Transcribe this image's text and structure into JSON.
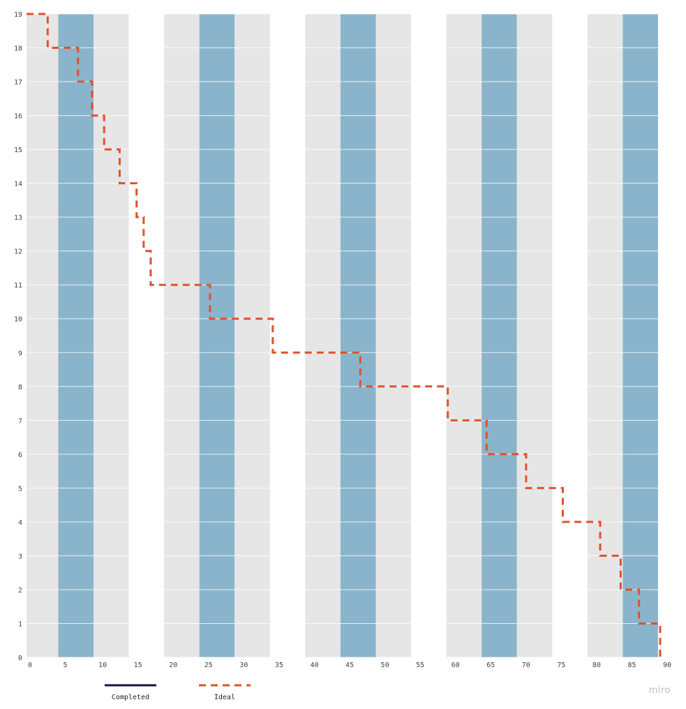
{
  "chart_data": {
    "type": "line",
    "title": "",
    "xlabel": "",
    "ylabel": "",
    "xlim": [
      0,
      90
    ],
    "ylim": [
      0,
      19
    ],
    "x_ticks": [
      0,
      5,
      10,
      15,
      20,
      25,
      30,
      35,
      40,
      45,
      50,
      55,
      60,
      65,
      70,
      75,
      80,
      85,
      90
    ],
    "y_ticks": [
      0,
      1,
      2,
      3,
      4,
      5,
      6,
      7,
      8,
      9,
      10,
      11,
      12,
      13,
      14,
      15,
      16,
      17,
      18,
      19
    ],
    "grid": "horizontal",
    "bands": [
      {
        "start": 0,
        "end": 4.5,
        "kind": "weekday"
      },
      {
        "start": 4.5,
        "end": 9.5,
        "kind": "highlight"
      },
      {
        "start": 9.5,
        "end": 14.5,
        "kind": "weekday"
      },
      {
        "start": 14.5,
        "end": 19.5,
        "kind": "empty"
      },
      {
        "start": 19.5,
        "end": 24.5,
        "kind": "weekday"
      },
      {
        "start": 24.5,
        "end": 29.5,
        "kind": "highlight"
      },
      {
        "start": 29.5,
        "end": 34.5,
        "kind": "weekday"
      },
      {
        "start": 34.5,
        "end": 39.5,
        "kind": "empty"
      },
      {
        "start": 39.5,
        "end": 44.5,
        "kind": "weekday"
      },
      {
        "start": 44.5,
        "end": 49.5,
        "kind": "highlight"
      },
      {
        "start": 49.5,
        "end": 54.5,
        "kind": "weekday"
      },
      {
        "start": 54.5,
        "end": 59.5,
        "kind": "empty"
      },
      {
        "start": 59.5,
        "end": 64.5,
        "kind": "weekday"
      },
      {
        "start": 64.5,
        "end": 69.5,
        "kind": "highlight"
      },
      {
        "start": 69.5,
        "end": 74.5,
        "kind": "weekday"
      },
      {
        "start": 74.5,
        "end": 79.5,
        "kind": "empty"
      },
      {
        "start": 79.5,
        "end": 84.5,
        "kind": "weekday"
      },
      {
        "start": 84.5,
        "end": 89.5,
        "kind": "highlight"
      }
    ],
    "series": [
      {
        "name": "Completed",
        "color": "#14143c",
        "style": "solid",
        "points": []
      },
      {
        "name": "Ideal",
        "color": "#e0512b",
        "style": "dashed",
        "step": "after",
        "points": [
          [
            0,
            19
          ],
          [
            3,
            18
          ],
          [
            7.3,
            17
          ],
          [
            9.3,
            16
          ],
          [
            11,
            15
          ],
          [
            13.2,
            14
          ],
          [
            15.6,
            13
          ],
          [
            16.6,
            12
          ],
          [
            17.6,
            11
          ],
          [
            26,
            10
          ],
          [
            34.9,
            9
          ],
          [
            47.3,
            8
          ],
          [
            59.7,
            7
          ],
          [
            65.2,
            6
          ],
          [
            70.8,
            5
          ],
          [
            76,
            4
          ],
          [
            81.3,
            3
          ],
          [
            84.2,
            2
          ],
          [
            86.8,
            1
          ],
          [
            89.8,
            0
          ]
        ]
      }
    ],
    "legend_position": "bottom-left"
  },
  "colors": {
    "band_weekday": "#e6e6e6",
    "band_highlight": "#8ab4cb",
    "gridline": "#ffffff"
  },
  "watermark": "miro"
}
